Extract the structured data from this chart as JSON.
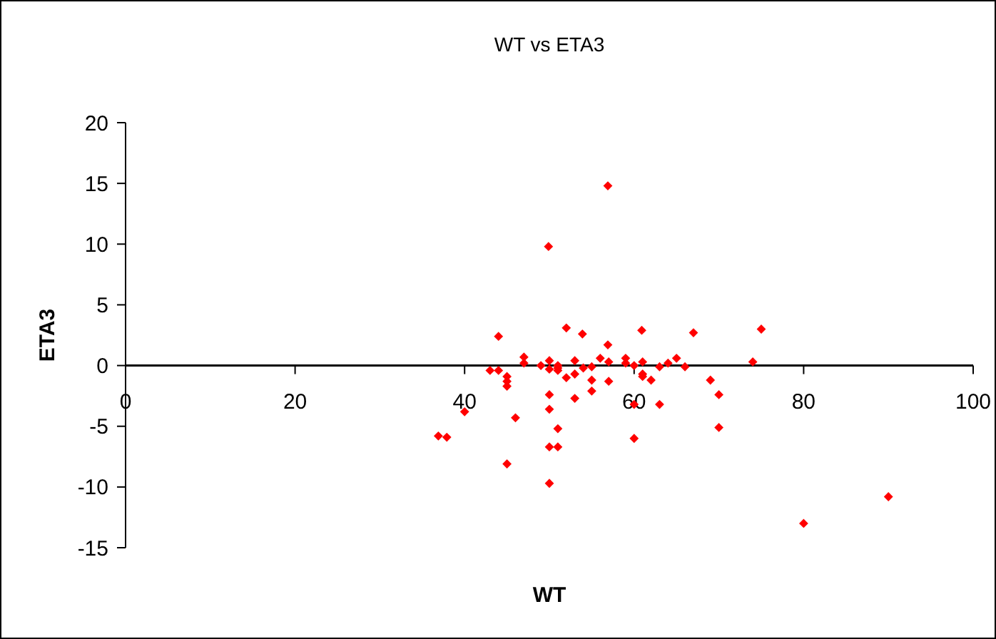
{
  "chart_data": {
    "type": "scatter",
    "title": "WT vs ETA3",
    "xlabel": "WT",
    "ylabel": "ETA3",
    "marker": "diamond",
    "grid": false,
    "xlim": [
      0,
      100
    ],
    "xticks": [
      0,
      20,
      40,
      60,
      80,
      100
    ],
    "ylim": [
      -15,
      20
    ],
    "yticks": [
      -15,
      -10,
      -5,
      0,
      5,
      10,
      15,
      20
    ],
    "series": [
      {
        "color": "#ff0000",
        "x": [
          56.9,
          49.9,
          44,
          52,
          53.9,
          56.9,
          60.9,
          67,
          75,
          43,
          44,
          45,
          45,
          45,
          47,
          47,
          49,
          50,
          50,
          51,
          51,
          51,
          52,
          53,
          53,
          54,
          55,
          55,
          55,
          56,
          57,
          57,
          59,
          59,
          60,
          61,
          61,
          61,
          62,
          63,
          64,
          65,
          66,
          69,
          74,
          70,
          70,
          63,
          60,
          60,
          53,
          50,
          50,
          51,
          50,
          51,
          50,
          45,
          46,
          40,
          36.9,
          37.9,
          80,
          90
        ],
        "values": [
          14.8,
          9.8,
          2.4,
          3.1,
          2.6,
          1.7,
          2.9,
          2.7,
          3,
          -0.4,
          -0.4,
          -0.9,
          -1.3,
          -1.7,
          0.7,
          0.2,
          0,
          0.4,
          -0.3,
          0,
          -0.2,
          -0.4,
          -1,
          0.4,
          -0.7,
          -0.2,
          -0.1,
          -1.2,
          -2.1,
          0.6,
          0.3,
          -1.3,
          0.6,
          0.2,
          0,
          0.3,
          -0.7,
          -0.9,
          -1.2,
          -0.1,
          0.2,
          0.6,
          -0.1,
          -1.2,
          0.3,
          -2.4,
          -5.1,
          -3.2,
          -3.2,
          -6,
          -2.7,
          -2.4,
          -3.6,
          -5.2,
          -6.7,
          -6.7,
          -9.7,
          -8.1,
          -4.3,
          -3.8,
          -5.8,
          -5.9,
          -13,
          -10.8
        ]
      }
    ]
  }
}
